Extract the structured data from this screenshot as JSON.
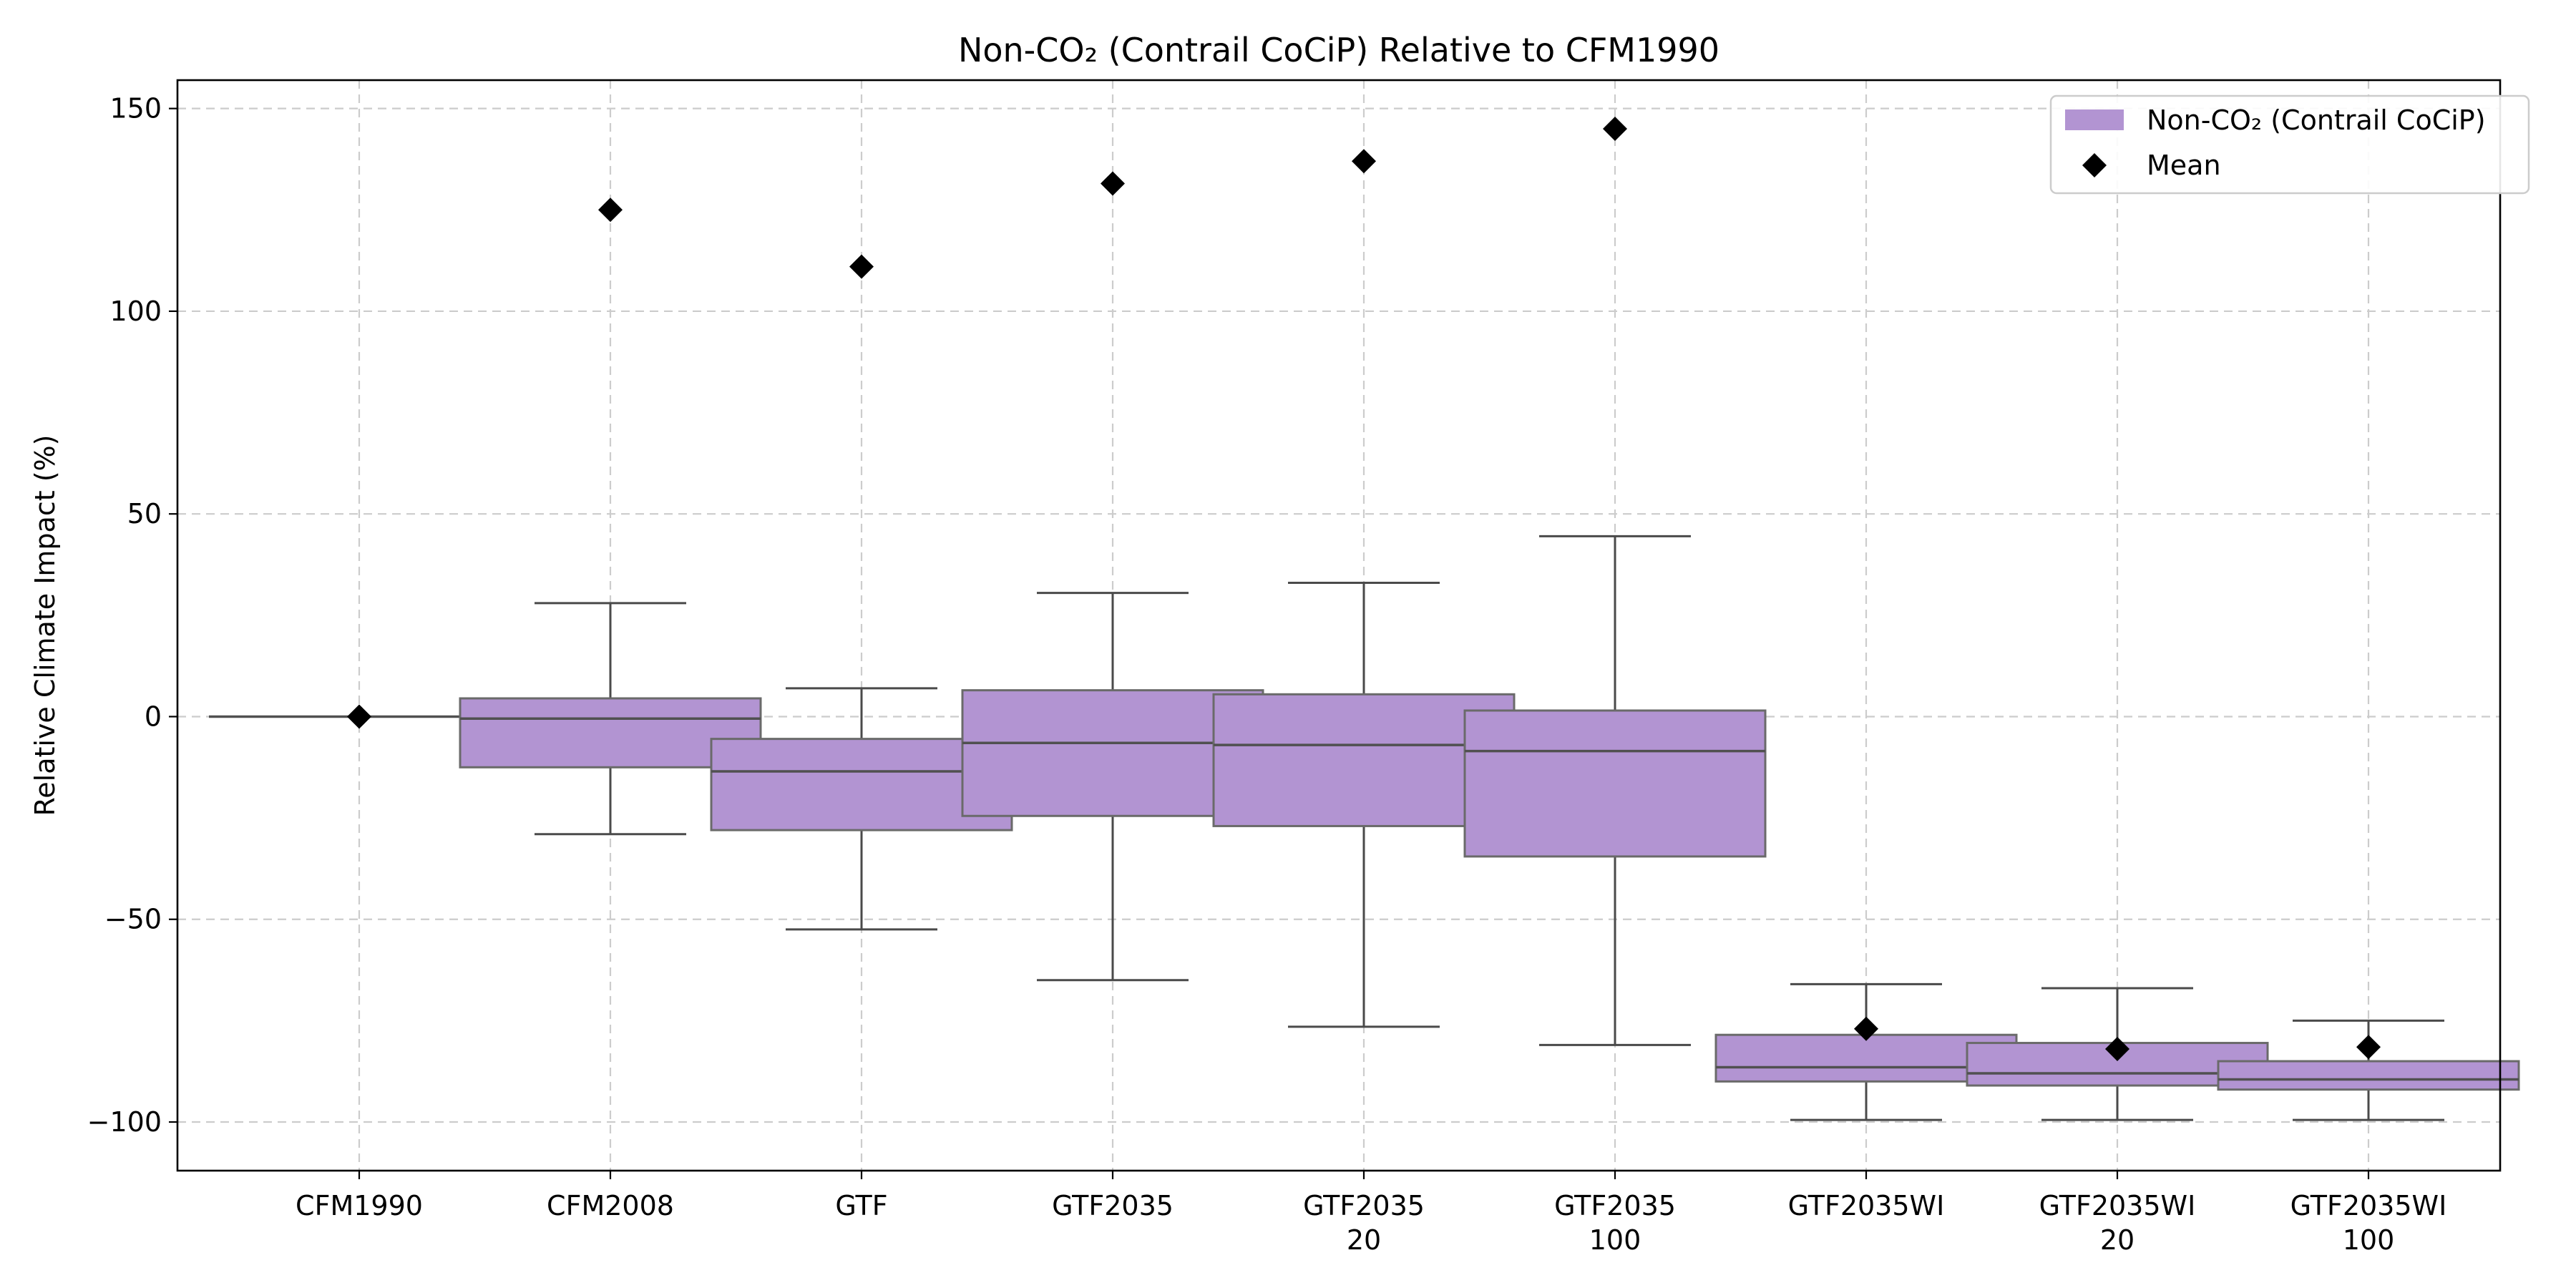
{
  "chart_data": {
    "type": "box",
    "title": "Non-CO₂ (Contrail CoCiP) Relative to CFM1990",
    "xlabel": "",
    "ylabel": "Relative Climate Impact (%)",
    "ylim": [
      -112,
      157
    ],
    "yticks": [
      150,
      100,
      50,
      0,
      -50,
      -100
    ],
    "ytick_labels": [
      "150",
      "100",
      "50",
      "0",
      "−50",
      "−100"
    ],
    "grid": true,
    "legend_position": "top-right",
    "series_color": "#b294d2",
    "mean_color": "#000000",
    "legend": [
      {
        "label": "Non-CO₂ (Contrail CoCiP)",
        "kind": "box"
      },
      {
        "label": "Mean",
        "kind": "diamond"
      }
    ],
    "categories": [
      {
        "lines": [
          "CFM1990"
        ],
        "whisker_low": 0,
        "q1": 0,
        "median": 0,
        "q3": 0,
        "whisker_high": 0,
        "mean": 0
      },
      {
        "lines": [
          "CFM2008"
        ],
        "whisker_low": -29,
        "q1": -12.5,
        "median": -0.5,
        "q3": 4.5,
        "whisker_high": 28,
        "mean": 125
      },
      {
        "lines": [
          "GTF"
        ],
        "whisker_low": -52.5,
        "q1": -28,
        "median": -13.5,
        "q3": -5.5,
        "whisker_high": 7,
        "mean": 111
      },
      {
        "lines": [
          "GTF2035"
        ],
        "whisker_low": -65,
        "q1": -24.5,
        "median": -6.5,
        "q3": 6.5,
        "whisker_high": 30.5,
        "mean": 131.5
      },
      {
        "lines": [
          "GTF2035",
          "20"
        ],
        "whisker_low": -76.5,
        "q1": -27,
        "median": -7,
        "q3": 5.5,
        "whisker_high": 33,
        "mean": 137
      },
      {
        "lines": [
          "GTF2035",
          "100"
        ],
        "whisker_low": -81,
        "q1": -34.5,
        "median": -8.5,
        "q3": 1.5,
        "whisker_high": 44.5,
        "mean": 145
      },
      {
        "lines": [
          "GTF2035WI"
        ],
        "whisker_low": -99.5,
        "q1": -90,
        "median": -86.5,
        "q3": -78.5,
        "whisker_high": -66,
        "mean": -77
      },
      {
        "lines": [
          "GTF2035WI",
          "20"
        ],
        "whisker_low": -99.5,
        "q1": -91,
        "median": -88,
        "q3": -80.5,
        "whisker_high": -67,
        "mean": -82
      },
      {
        "lines": [
          "GTF2035WI",
          "100"
        ],
        "whisker_low": -99.5,
        "q1": -92,
        "median": -89.5,
        "q3": -85,
        "whisker_high": -75,
        "mean": -81.5
      }
    ]
  }
}
